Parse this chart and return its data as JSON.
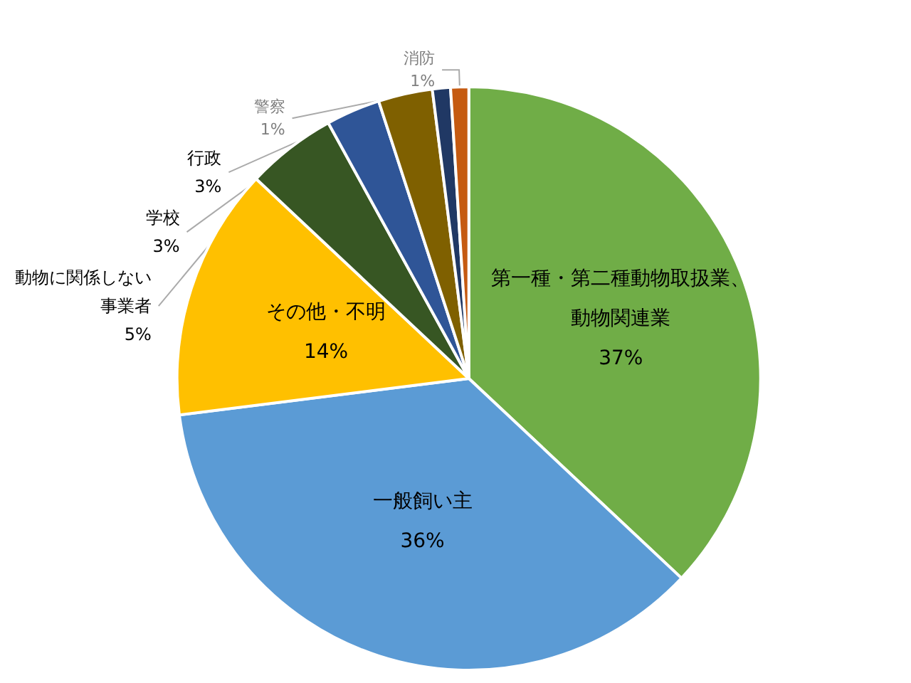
{
  "chart_data": {
    "type": "pie",
    "categories": [
      "第一種・第二種動物取扱業、動物関連業",
      "一般飼い主",
      "その他・不明",
      "動物に関係しない事業者",
      "学校",
      "行政",
      "警察",
      "消防"
    ],
    "values": [
      37,
      36,
      14,
      5,
      3,
      3,
      1,
      1
    ],
    "value_labels": [
      "37%",
      "36%",
      "14%",
      "5%",
      "3%",
      "3%",
      "1%",
      "1%"
    ],
    "colors": [
      "#70ad47",
      "#5b9bd5",
      "#ffc000",
      "#375623",
      "#2f5597",
      "#7f6000",
      "#203864",
      "#c55a11"
    ],
    "legend": false
  }
}
